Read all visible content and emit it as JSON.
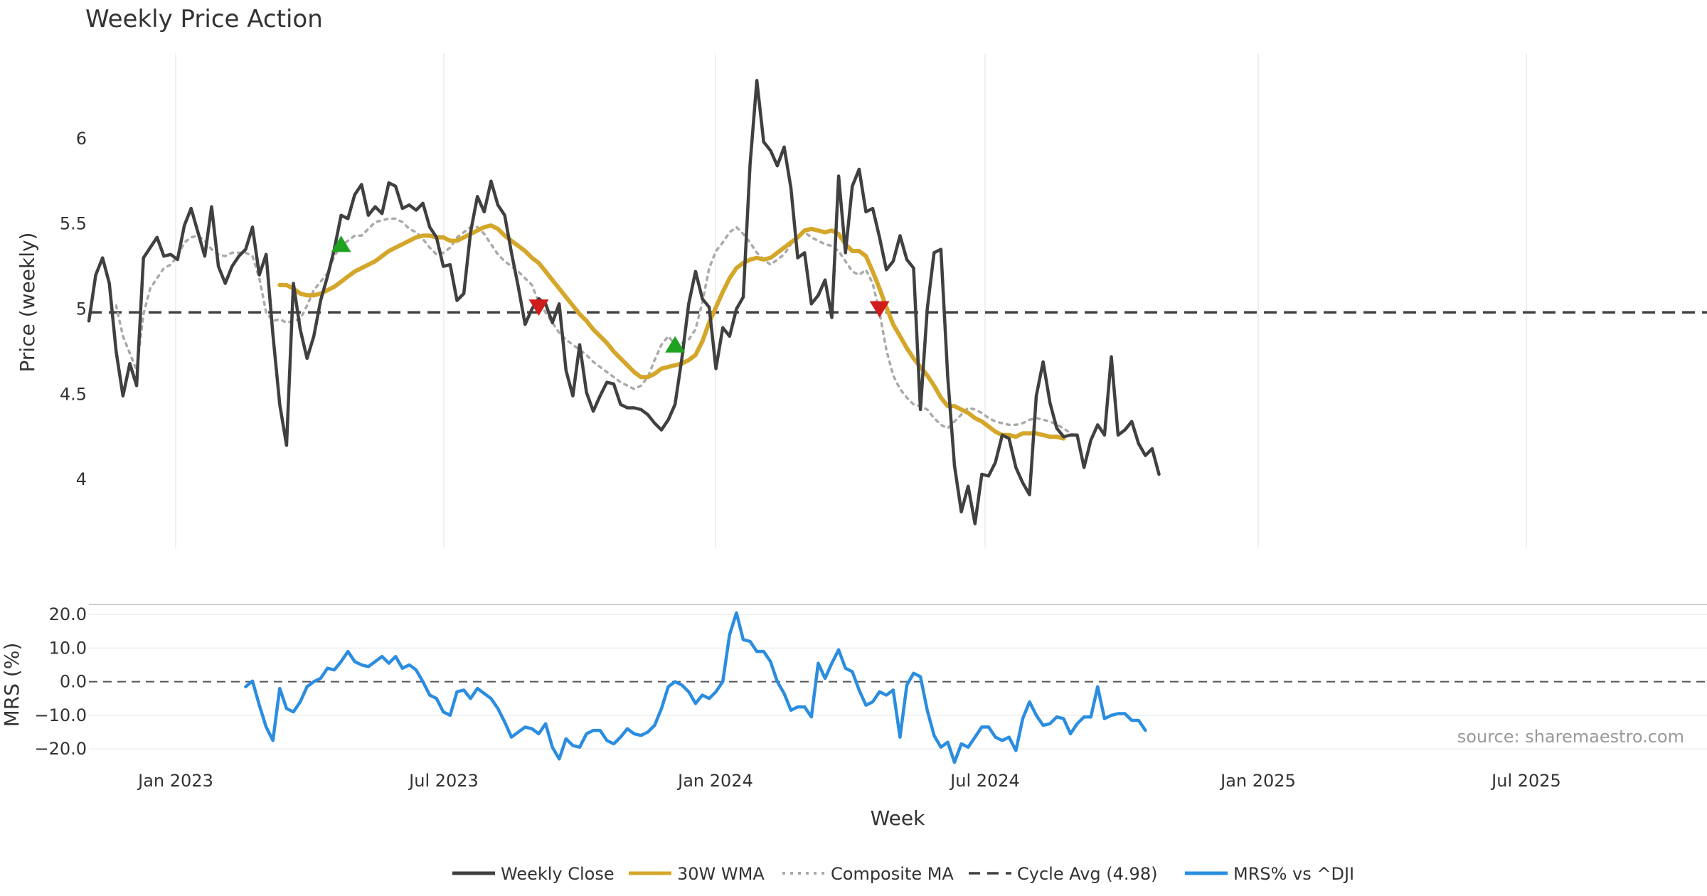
{
  "chart_data": {
    "title": "Weekly Price Action",
    "type": "line",
    "x_label": "Week",
    "x_ticks": [
      "Jan 2023",
      "Jul 2023",
      "Jan 2024",
      "Jul 2024",
      "Jan 2025",
      "Jul 2025"
    ],
    "source": "source: sharemaestro.com",
    "price_panel": {
      "ylabel": "Price (weekly)",
      "ylim": [
        3.6,
        6.5
      ],
      "y_ticks": [
        "4",
        "4.5",
        "5",
        "5.5",
        "6"
      ],
      "cycle_avg": 4.98,
      "series": [
        {
          "name": "Weekly Close",
          "color": "#404040",
          "start_week": 0,
          "values": [
            4.93,
            5.2,
            5.3,
            5.15,
            4.75,
            4.49,
            4.68,
            4.55,
            5.3,
            5.36,
            5.42,
            5.31,
            5.32,
            5.29,
            5.49,
            5.59,
            5.45,
            5.31,
            5.6,
            5.25,
            5.15,
            5.25,
            5.31,
            5.35,
            5.48,
            5.2,
            5.32,
            4.85,
            4.44,
            4.2,
            5.15,
            4.88,
            4.71,
            4.84,
            5.05,
            5.19,
            5.35,
            5.55,
            5.53,
            5.67,
            5.73,
            5.55,
            5.6,
            5.56,
            5.74,
            5.72,
            5.59,
            5.61,
            5.58,
            5.62,
            5.48,
            5.42,
            5.25,
            5.26,
            5.05,
            5.09,
            5.45,
            5.66,
            5.57,
            5.75,
            5.61,
            5.55,
            5.33,
            5.13,
            4.91,
            5.0,
            5.06,
            5.03,
            4.92,
            5.03,
            4.64,
            4.49,
            4.79,
            4.51,
            4.4,
            4.49,
            4.57,
            4.56,
            4.44,
            4.42,
            4.42,
            4.41,
            4.38,
            4.33,
            4.29,
            4.35,
            4.44,
            4.71,
            5.03,
            5.22,
            5.06,
            5.01,
            4.65,
            4.89,
            4.84,
            5.0,
            5.07,
            5.85,
            6.34,
            5.98,
            5.93,
            5.84,
            5.95,
            5.71,
            5.3,
            5.33,
            5.03,
            5.08,
            5.17,
            4.95,
            5.78,
            5.33,
            5.72,
            5.82,
            5.57,
            5.59,
            5.42,
            5.23,
            5.28,
            5.43,
            5.29,
            5.24,
            4.41,
            5.0,
            5.33,
            5.35,
            4.6,
            4.08,
            3.81,
            3.96,
            3.74,
            4.03,
            4.02,
            4.1,
            4.26,
            4.24,
            4.07,
            3.98,
            3.91,
            4.49,
            4.69,
            4.45,
            4.3,
            4.25,
            4.26,
            4.26,
            4.07,
            4.23,
            4.32,
            4.26,
            4.72,
            4.26,
            4.29,
            4.34,
            4.21,
            4.14,
            4.18,
            4.03
          ]
        },
        {
          "name": "30W WMA",
          "color": "#d4a62a",
          "start_week": 28,
          "values": [
            5.14,
            5.14,
            5.12,
            5.09,
            5.08,
            5.08,
            5.09,
            5.11,
            5.13,
            5.16,
            5.19,
            5.22,
            5.24,
            5.26,
            5.28,
            5.31,
            5.34,
            5.36,
            5.38,
            5.4,
            5.42,
            5.43,
            5.43,
            5.42,
            5.42,
            5.4,
            5.4,
            5.42,
            5.44,
            5.46,
            5.48,
            5.49,
            5.47,
            5.43,
            5.4,
            5.37,
            5.34,
            5.3,
            5.27,
            5.22,
            5.17,
            5.12,
            5.07,
            5.02,
            4.97,
            4.93,
            4.88,
            4.84,
            4.8,
            4.75,
            4.71,
            4.67,
            4.63,
            4.6,
            4.6,
            4.62,
            4.65,
            4.66,
            4.67,
            4.68,
            4.7,
            4.73,
            4.81,
            4.92,
            5.01,
            5.1,
            5.18,
            5.24,
            5.27,
            5.29,
            5.3,
            5.29,
            5.3,
            5.33,
            5.36,
            5.39,
            5.42,
            5.46,
            5.47,
            5.46,
            5.45,
            5.46,
            5.44,
            5.38,
            5.34,
            5.34,
            5.31,
            5.22,
            5.12,
            5.01,
            4.91,
            4.84,
            4.77,
            4.71,
            4.66,
            4.61,
            4.55,
            4.48,
            4.43,
            4.43,
            4.41,
            4.39,
            4.36,
            4.34,
            4.31,
            4.28,
            4.26,
            4.26,
            4.25,
            4.27,
            4.27,
            4.27,
            4.26,
            4.25,
            4.25,
            4.24
          ]
        },
        {
          "name": "Composite MA",
          "color": "#aaaaaa",
          "start_week": 4,
          "values": [
            5.02,
            4.84,
            4.74,
            4.64,
            4.97,
            5.12,
            5.18,
            5.24,
            5.26,
            5.31,
            5.39,
            5.42,
            5.43,
            5.4,
            5.35,
            5.32,
            5.31,
            5.33,
            5.33,
            5.33,
            5.31,
            5.18,
            4.98,
            4.93,
            4.94,
            4.92,
            4.93,
            4.94,
            5.02,
            5.11,
            5.16,
            5.21,
            5.31,
            5.37,
            5.4,
            5.43,
            5.43,
            5.47,
            5.51,
            5.52,
            5.53,
            5.53,
            5.51,
            5.47,
            5.45,
            5.41,
            5.36,
            5.32,
            5.33,
            5.36,
            5.42,
            5.45,
            5.48,
            5.48,
            5.44,
            5.38,
            5.32,
            5.28,
            5.25,
            5.22,
            5.18,
            5.14,
            5.04,
            4.98,
            4.92,
            4.86,
            4.82,
            4.79,
            4.76,
            4.73,
            4.69,
            4.66,
            4.63,
            4.6,
            4.57,
            4.55,
            4.53,
            4.55,
            4.6,
            4.7,
            4.79,
            4.84,
            4.79,
            4.8,
            4.82,
            4.88,
            5.04,
            5.24,
            5.34,
            5.39,
            5.45,
            5.48,
            5.44,
            5.39,
            5.33,
            5.29,
            5.26,
            5.29,
            5.32,
            5.38,
            5.43,
            5.45,
            5.42,
            5.4,
            5.38,
            5.37,
            5.34,
            5.28,
            5.22,
            5.2,
            5.23,
            5.15,
            4.98,
            4.76,
            4.61,
            4.53,
            4.48,
            4.44,
            4.43,
            4.41,
            4.36,
            4.32,
            4.3,
            4.34,
            4.38,
            4.42,
            4.41,
            4.39,
            4.36,
            4.34,
            4.33,
            4.32,
            4.32,
            4.33,
            4.35,
            4.36,
            4.35,
            4.34,
            4.32,
            4.3,
            4.27,
            4.25
          ]
        }
      ],
      "buy_signals": [
        {
          "week": 37,
          "price": 5.38
        },
        {
          "week": 86,
          "price": 4.79
        }
      ],
      "sell_signals": [
        {
          "week": 66,
          "price": 5.01
        },
        {
          "week": 116,
          "price": 5.0
        }
      ]
    },
    "mrs_panel": {
      "ylabel": "MRS (%)",
      "ylim": [
        -24,
        23
      ],
      "y_ticks": [
        "20.0",
        "10.0",
        "0.0",
        "−10.0",
        "−20.0"
      ],
      "series": {
        "name": "MRS% vs ^DJI",
        "color": "#2b8de0",
        "start_week": 23,
        "values": [
          -1.5,
          0.2,
          -7,
          -13.5,
          -17.5,
          -2,
          -8,
          -9,
          -6,
          -1.5,
          0,
          1,
          4,
          3.5,
          6,
          9,
          6,
          5,
          4.5,
          6,
          7.5,
          5.5,
          7.5,
          4,
          5,
          3.5,
          0,
          -4,
          -5,
          -9,
          -10,
          -3,
          -2.5,
          -5,
          -2,
          -3.5,
          -5,
          -8,
          -12,
          -16.5,
          -15,
          -13.5,
          -14,
          -15.5,
          -12.5,
          -19.5,
          -23,
          -17,
          -19,
          -19.5,
          -15.5,
          -14.5,
          -14.5,
          -17.5,
          -18.5,
          -16.5,
          -14,
          -15.5,
          -16,
          -15,
          -13,
          -8,
          -1.5,
          0,
          -1,
          -3,
          -6.5,
          -4,
          -5,
          -3,
          0,
          14,
          20.5,
          12.5,
          12,
          9,
          9,
          6,
          0,
          -3.5,
          -8.5,
          -7.5,
          -7.5,
          -10.5,
          5.5,
          1,
          5.5,
          9.5,
          4,
          3,
          -2.5,
          -7,
          -6,
          -3,
          -4,
          -2.5,
          -16.5,
          -1,
          2.5,
          1.5,
          -8.5,
          -16,
          -19.5,
          -18,
          -24,
          -18.5,
          -19.5,
          -16.5,
          -13.5,
          -13.5,
          -16.5,
          -17.5,
          -16.5,
          -20.5,
          -11,
          -6,
          -10,
          -13,
          -12.5,
          -10.5,
          -11,
          -15.5,
          -12.5,
          -10.5,
          -10.5,
          -1.5,
          -11,
          -10,
          -9.5,
          -9.5,
          -11.5,
          -11.5,
          -14.5
        ]
      }
    },
    "legend": [
      {
        "label": "Weekly Close",
        "color": "#404040",
        "style": "solid"
      },
      {
        "label": "30W WMA",
        "color": "#d4a62a",
        "style": "solid"
      },
      {
        "label": "Composite MA",
        "color": "#aaaaaa",
        "style": "dotted"
      },
      {
        "label": "Cycle Avg (4.98)",
        "color": "#404040",
        "style": "dashed"
      },
      {
        "label": "MRS% vs ^DJI",
        "color": "#2b8de0",
        "style": "solid"
      }
    ]
  }
}
